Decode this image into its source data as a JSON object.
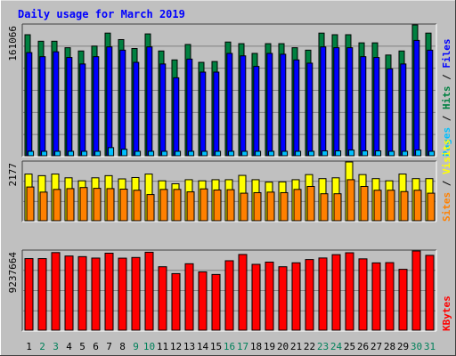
{
  "chart_data": {
    "type": "bar",
    "title": "Daily usage for March 2019",
    "categories": [
      "1",
      "2",
      "3",
      "4",
      "5",
      "6",
      "7",
      "8",
      "9",
      "10",
      "11",
      "12",
      "13",
      "14",
      "15",
      "16",
      "17",
      "18",
      "19",
      "20",
      "21",
      "22",
      "23",
      "24",
      "25",
      "26",
      "27",
      "28",
      "29",
      "30",
      "31"
    ],
    "weekend_days": [
      2,
      3,
      9,
      10,
      16,
      17,
      23,
      24,
      30,
      31
    ],
    "panels": [
      {
        "id": "hits-files-pages",
        "ymax_label": "161066",
        "ymax": 161066,
        "legend": [
          {
            "text": "Pages",
            "color": "#00c0ff"
          },
          {
            "text": "Hits",
            "color": "#008040"
          },
          {
            "text": "Files",
            "color": "#0000ff"
          }
        ],
        "series": [
          {
            "name": "Hits",
            "color": "#008040",
            "values": [
              149000,
              141000,
              141000,
              133000,
              129000,
              135000,
              151000,
              143000,
              132000,
              150000,
              129000,
              118000,
              137000,
              115000,
              116000,
              140000,
              138000,
              126000,
              138000,
              138000,
              133000,
              130000,
              151000,
              149000,
              149000,
              139000,
              139000,
              124000,
              129000,
              161066,
              151000
            ]
          },
          {
            "name": "Files",
            "color": "#0000ff",
            "values": [
              127000,
              122000,
              128000,
              121000,
              113000,
              122000,
              134000,
              130000,
              115000,
              134000,
              113000,
              96000,
              119000,
              103000,
              103000,
              126000,
              123000,
              110000,
              126000,
              125000,
              118000,
              114000,
              134000,
              133000,
              133000,
              122000,
              121000,
              107000,
              113000,
              142000,
              130000
            ]
          },
          {
            "name": "Pages",
            "color": "#00c0ff",
            "values": [
              5500,
              5500,
              5500,
              5500,
              5500,
              5500,
              10000,
              8000,
              5500,
              5500,
              5500,
              5500,
              5500,
              5500,
              5500,
              5500,
              5500,
              5500,
              5500,
              5500,
              5500,
              5500,
              6000,
              6000,
              7000,
              6000,
              6000,
              5500,
              5500,
              7000,
              5500
            ]
          }
        ]
      },
      {
        "id": "visits-sites",
        "ymax_label": "2177",
        "ymax": 2177,
        "legend": [
          {
            "text": "Sites",
            "color": "#ff8000"
          },
          {
            "text": "Visits",
            "color": "#ffff00"
          }
        ],
        "series": [
          {
            "name": "Visits",
            "color": "#ffff00",
            "values": [
              1730,
              1670,
              1730,
              1590,
              1480,
              1590,
              1670,
              1550,
              1600,
              1730,
              1480,
              1370,
              1520,
              1480,
              1520,
              1520,
              1680,
              1520,
              1430,
              1440,
              1520,
              1710,
              1560,
              1590,
              2177,
              1710,
              1560,
              1480,
              1730,
              1560,
              1560
            ]
          },
          {
            "name": "Sites",
            "color": "#ff8000",
            "values": [
              1250,
              1060,
              1160,
              1190,
              1230,
              1200,
              1190,
              1170,
              1130,
              970,
              1160,
              1160,
              1070,
              1180,
              1140,
              1150,
              1020,
              1040,
              1060,
              1040,
              1160,
              1270,
              1000,
              1000,
              1520,
              1270,
              1130,
              1130,
              1080,
              1130,
              1020
            ]
          }
        ]
      },
      {
        "id": "kbytes",
        "ymax_label": "9237664",
        "ymax": 9237664,
        "legend": [
          {
            "text": "KBytes",
            "color": "#ff0000"
          }
        ],
        "series": [
          {
            "name": "KBytes",
            "color": "#ff0000",
            "values": [
              8350,
              8350,
              9050,
              8650,
              8580,
              8410,
              8980,
              8400,
              8480,
              9090,
              7400,
              6600,
              7750,
              6800,
              6500,
              8100,
              8830,
              7680,
              7940,
              7400,
              7860,
              8240,
              8420,
              8810,
              9030,
              8320,
              7850,
              7880,
              7100,
              9237664,
              8730
            ]
          }
        ]
      }
    ]
  }
}
